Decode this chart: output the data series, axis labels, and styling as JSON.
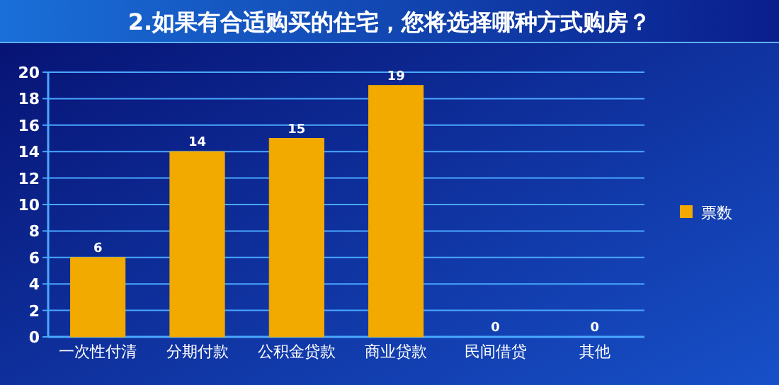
{
  "chart_data": {
    "type": "bar",
    "title": "2.如果有合适购买的住宅，您将选择哪种方式购房？",
    "categories": [
      "一次性付清",
      "分期付款",
      "公积金贷款",
      "商业贷款",
      "民间借贷",
      "其他"
    ],
    "series": [
      {
        "name": "票数",
        "color": "#f2a900",
        "values": [
          6,
          14,
          15,
          19,
          0,
          0
        ]
      }
    ],
    "ylim": [
      0,
      20
    ],
    "yticks": [
      0,
      2,
      4,
      6,
      8,
      10,
      12,
      14,
      16,
      18,
      20
    ],
    "grid": "y",
    "legend": "right",
    "data_labels": true
  }
}
